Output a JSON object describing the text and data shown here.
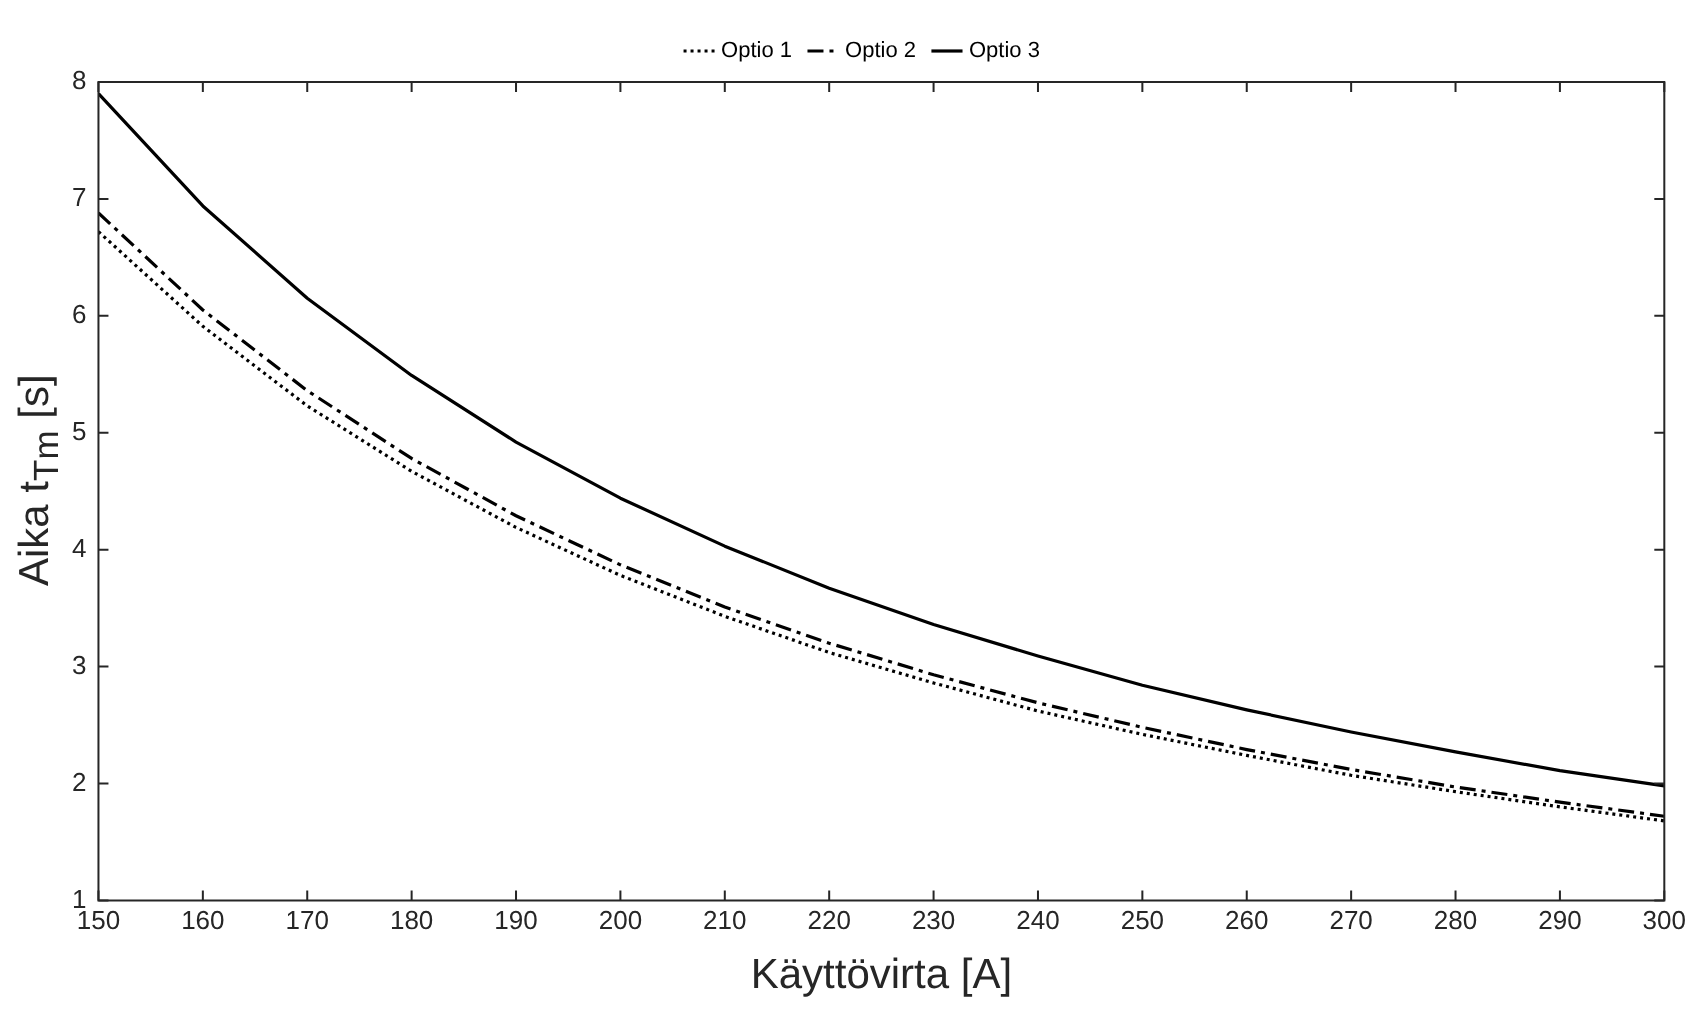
{
  "chart_data": {
    "type": "line",
    "xlabel": "Käyttövirta [A]",
    "ylabel": "Aika t$_{Tm}$ [s]",
    "x": [
      150,
      160,
      170,
      180,
      190,
      200,
      210,
      220,
      230,
      240,
      250,
      260,
      270,
      280,
      290,
      300
    ],
    "series": [
      {
        "name": "Optio 1",
        "color": "#000000",
        "line_style": "dotted",
        "values": [
          6.72,
          5.91,
          5.23,
          4.67,
          4.19,
          3.78,
          3.43,
          3.12,
          2.86,
          2.62,
          2.42,
          2.24,
          2.07,
          1.93,
          1.8,
          1.68
        ]
      },
      {
        "name": "Optio 2",
        "color": "#000000",
        "line_style": "dashdot",
        "values": [
          6.88,
          6.05,
          5.36,
          4.78,
          4.29,
          3.87,
          3.51,
          3.2,
          2.93,
          2.69,
          2.48,
          2.29,
          2.12,
          1.97,
          1.84,
          1.72
        ]
      },
      {
        "name": "Optio 3",
        "color": "#000000",
        "line_style": "solid",
        "values": [
          7.9,
          6.94,
          6.15,
          5.49,
          4.92,
          4.44,
          4.03,
          3.67,
          3.36,
          3.09,
          2.84,
          2.63,
          2.44,
          2.27,
          2.11,
          1.98
        ]
      }
    ],
    "xlim": [
      150,
      300
    ],
    "xticks": [
      150,
      160,
      170,
      180,
      190,
      200,
      210,
      220,
      230,
      240,
      250,
      260,
      270,
      280,
      290,
      300
    ],
    "ylim": [
      1,
      8
    ],
    "yticks": [
      1,
      2,
      3,
      4,
      5,
      6,
      7,
      8
    ],
    "grid": false,
    "legend": "top",
    "marker": "none"
  }
}
